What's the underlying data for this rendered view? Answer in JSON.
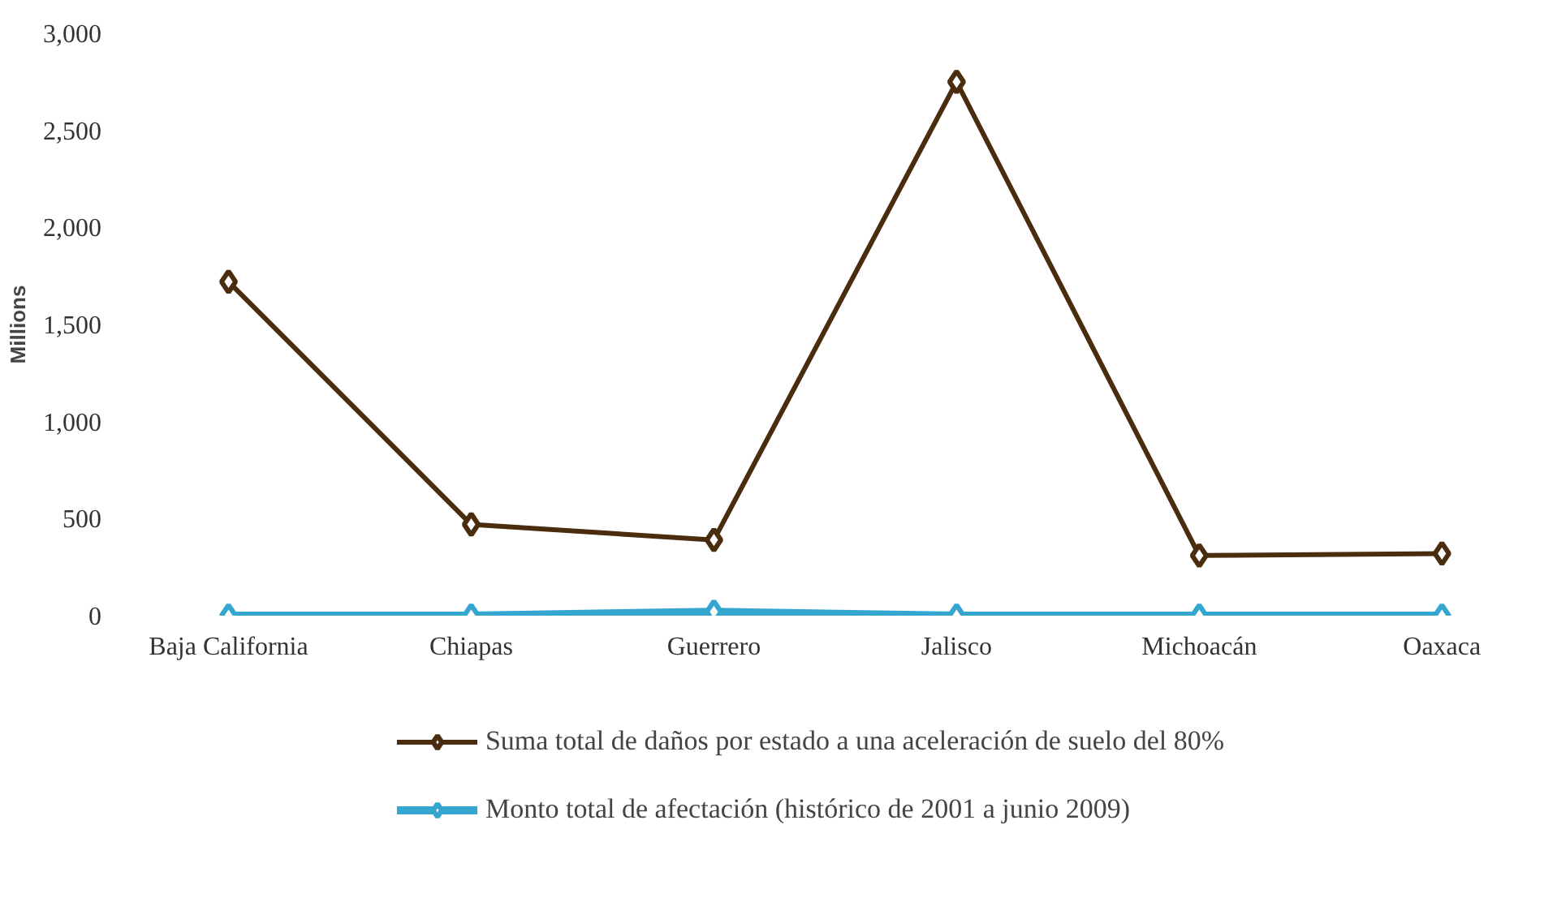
{
  "chart_data": {
    "type": "line",
    "ylabel": "Millions",
    "categories": [
      "Baja California",
      "Chiapas",
      "Guerrero",
      "Jalisco",
      "Michoacán",
      "Oaxaca"
    ],
    "series": [
      {
        "name": "Suma total de daños por estado a una aceleración de suelo del 80%",
        "color": "#4a2c0f",
        "values": [
          1720,
          470,
          390,
          2750,
          310,
          320
        ]
      },
      {
        "name": "Monto total de afectación (histórico de 2001 a junio 2009)",
        "color": "#35a6cf",
        "values": [
          0,
          0,
          20,
          0,
          0,
          0
        ]
      }
    ],
    "ylim": [
      0,
      3000
    ],
    "yticks": [
      {
        "value": 0,
        "label": "0"
      },
      {
        "value": 500,
        "label": "500"
      },
      {
        "value": 1000,
        "label": "1,000"
      },
      {
        "value": 1500,
        "label": "1,500"
      },
      {
        "value": 2000,
        "label": "2,000"
      },
      {
        "value": 2500,
        "label": "2,500"
      },
      {
        "value": 3000,
        "label": "3,000"
      }
    ],
    "grid": false,
    "legend": "bottom",
    "marker": "diamond",
    "line_style": "solid"
  }
}
